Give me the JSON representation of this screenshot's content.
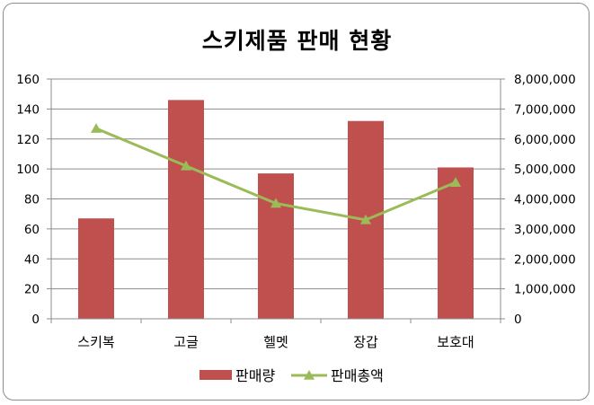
{
  "chart_data": {
    "type": "bar",
    "title": "스키제품 판매 현황",
    "categories": [
      "스키복",
      "고글",
      "헬멧",
      "장갑",
      "보호대"
    ],
    "series": [
      {
        "name": "판매량",
        "type": "bar",
        "axis": "left",
        "color": "#c0504d",
        "values": [
          67,
          146,
          97,
          132,
          101
        ]
      },
      {
        "name": "판매총액",
        "type": "line",
        "axis": "right",
        "color": "#9bbb59",
        "values": [
          6350000,
          5100000,
          3850000,
          3300000,
          4550000
        ]
      }
    ],
    "ylim": [
      0,
      160
    ],
    "yticks": [
      "0",
      "20",
      "40",
      "60",
      "80",
      "100",
      "120",
      "140",
      "160"
    ],
    "y2lim": [
      0,
      8000000
    ],
    "y2ticks": [
      "0",
      "1,000,000",
      "2,000,000",
      "3,000,000",
      "4,000,000",
      "5,000,000",
      "6,000,000",
      "7,000,000",
      "8,000,000"
    ],
    "grid": true,
    "legend": "bottom"
  }
}
